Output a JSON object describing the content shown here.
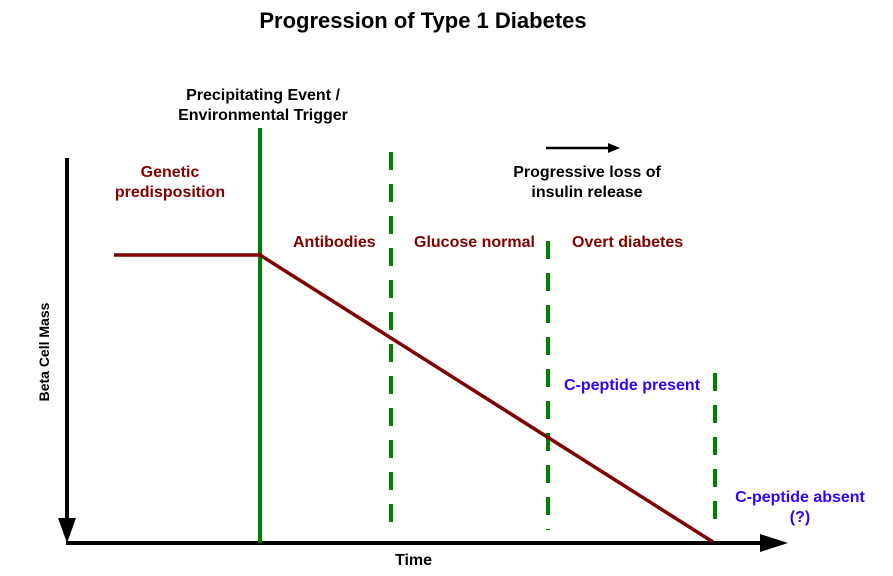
{
  "title": "Progression of Type 1 Diabetes",
  "axes": {
    "x_label": "Time",
    "y_label": "Beta Cell Mass"
  },
  "labels": {
    "trigger": [
      "Precipitating Event /",
      "Environmental Trigger"
    ],
    "genetic": [
      "Genetic",
      "predisposition"
    ],
    "progressive_loss": [
      "Progressive loss of",
      "insulin release"
    ],
    "antibodies": "Antibodies",
    "glucose_normal": "Glucose normal",
    "overt_diabetes": "Overt diabetes",
    "c_peptide_present": "C-peptide present",
    "c_peptide_absent": [
      "C-peptide absent",
      "(?)"
    ]
  },
  "colors": {
    "beta_cell_line": "#800000",
    "trigger_line": "#008000",
    "stage_lines": "#008000",
    "red_text": "#800000",
    "blue_text": "#3300ff",
    "axes": "#000000"
  }
}
